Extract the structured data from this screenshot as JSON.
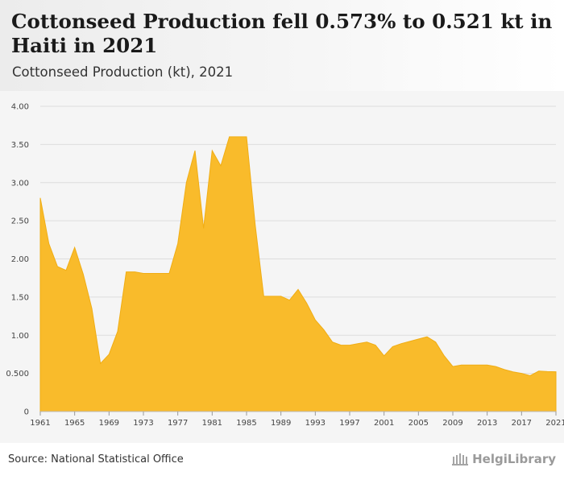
{
  "header": {
    "title": "Cottonseed Production fell 0.573% to 0.521 kt in Haiti in 2021",
    "subtitle": "Cottonseed Production (kt), 2021"
  },
  "footer": {
    "source": "Source: National Statistical Office",
    "logo_text": "HelgiLibrary"
  },
  "colors": {
    "area_fill": "#f9bb2b",
    "area_stroke": "#f0ad14",
    "grid": "#dddddd",
    "plot_bg": "#f5f5f5"
  },
  "chart_data": {
    "type": "area",
    "title": "",
    "xlabel": "",
    "ylabel": "",
    "ylim": [
      0,
      4
    ],
    "xlim": [
      1961,
      2021
    ],
    "grid": true,
    "y_ticks": [
      "0",
      "0.500",
      "1.00",
      "1.50",
      "2.00",
      "2.50",
      "3.00",
      "3.50",
      "4.00"
    ],
    "y_tick_values": [
      0,
      0.5,
      1,
      1.5,
      2,
      2.5,
      3,
      3.5,
      4
    ],
    "x_ticks": [
      "1961",
      "1965",
      "1969",
      "1973",
      "1977",
      "1981",
      "1985",
      "1989",
      "1993",
      "1997",
      "2001",
      "2005",
      "2009",
      "2013",
      "2017",
      "2021"
    ],
    "series": [
      {
        "x": [
          1961,
          1962,
          1963,
          1964,
          1965,
          1966,
          1967,
          1968,
          1969,
          1970,
          1971,
          1972,
          1973,
          1974,
          1975,
          1976,
          1977,
          1978,
          1979,
          1980,
          1981,
          1982,
          1983,
          1984,
          1985,
          1986,
          1987,
          1988,
          1989,
          1990,
          1991,
          1992,
          1993,
          1994,
          1995,
          1996,
          1997,
          1998,
          1999,
          2000,
          2001,
          2002,
          2003,
          2004,
          2005,
          2006,
          2007,
          2008,
          2009,
          2010,
          2011,
          2012,
          2013,
          2014,
          2015,
          2016,
          2017,
          2018,
          2019,
          2020,
          2021
        ],
        "values": [
          2.8,
          2.2,
          1.9,
          1.85,
          2.15,
          1.8,
          1.35,
          0.63,
          0.75,
          1.05,
          1.83,
          1.83,
          1.81,
          1.81,
          1.81,
          1.81,
          2.2,
          3.0,
          3.42,
          2.4,
          3.42,
          3.22,
          3.6,
          3.6,
          3.6,
          2.45,
          1.51,
          1.51,
          1.51,
          1.46,
          1.6,
          1.42,
          1.2,
          1.07,
          0.91,
          0.87,
          0.87,
          0.89,
          0.91,
          0.87,
          0.73,
          0.85,
          0.89,
          0.92,
          0.95,
          0.98,
          0.91,
          0.73,
          0.59,
          0.61,
          0.61,
          0.61,
          0.61,
          0.59,
          0.55,
          0.52,
          0.5,
          0.47,
          0.53,
          0.524,
          0.521
        ]
      }
    ]
  }
}
